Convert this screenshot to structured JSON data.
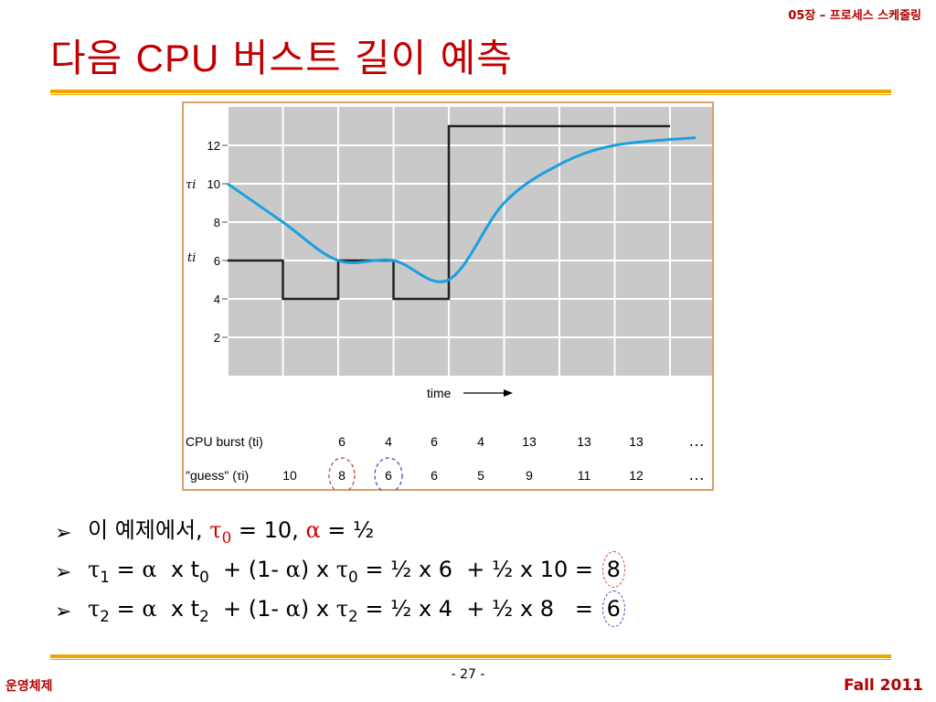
{
  "header": {
    "chapter": "05장 – 프로세스 스케줄링"
  },
  "title": {
    "prefix": "다음 ",
    "bold": "CPU",
    "suffix": " 버스트 길이 예측"
  },
  "chart_data": {
    "type": "line",
    "xlabel": "time",
    "yticks": [
      2,
      4,
      6,
      8,
      10,
      12
    ],
    "ylim": [
      0,
      14
    ],
    "grid": true,
    "y_labels": [
      "τi",
      "ti"
    ],
    "series": [
      {
        "values": [
          6,
          4,
          6,
          4,
          13,
          13,
          13,
          13
        ],
        "style": "step",
        "color": "#222222"
      },
      {
        "values": [
          10,
          8,
          6,
          6,
          5,
          9,
          11,
          12
        ],
        "style": "smooth",
        "color": "#1aa0e0"
      }
    ],
    "table": {
      "rows": [
        {
          "label": "CPU burst (ti)",
          "values": [
            "6",
            "4",
            "6",
            "4",
            "13",
            "13",
            "13",
            "…"
          ]
        },
        {
          "label": "\"guess\" (τi)",
          "values": [
            "10",
            "8",
            "6",
            "6",
            "5",
            "9",
            "11",
            "12",
            "…"
          ]
        }
      ]
    }
  },
  "bullets": [
    {
      "text": "이 예제에서, τ0 = 10, α = ½"
    },
    {
      "text": "τ1 = α x t0 + (1- α) x τ0 = ½ x 6 + ½ x 10 = 8"
    },
    {
      "text": "τ2 = α x t2 + (1- α) x τ2 = ½ x 4 + ½ x 8 = 6"
    }
  ],
  "footer": {
    "page": "- 27 -",
    "left": "운영체제",
    "right": "Fall 2011"
  }
}
